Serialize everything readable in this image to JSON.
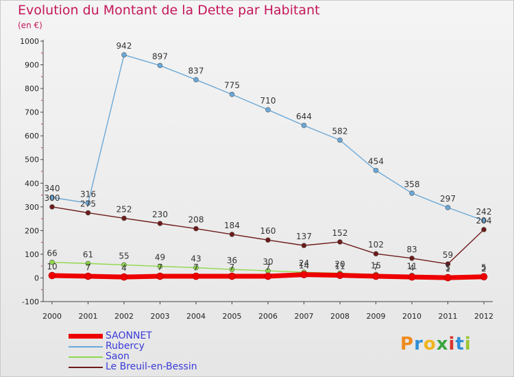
{
  "title": "Evolution du Montant de la Dette par Habitant",
  "unit_label": "(en €)",
  "logo": {
    "text": "Proxiti",
    "colors": [
      "#f08a1c",
      "#2f8fd8",
      "#f0b41c",
      "#3aa542",
      "#d8352a",
      "#2f8fd8",
      "#9ac531"
    ]
  },
  "chart_data": {
    "type": "line",
    "title": "Evolution du Montant de la Dette par Habitant",
    "ylabel": "(en €)",
    "x": [
      "2000",
      "2001",
      "2002",
      "2003",
      "2004",
      "2005",
      "2006",
      "2007",
      "2008",
      "2009",
      "2010",
      "2011",
      "2012"
    ],
    "ylim": [
      -100,
      1000
    ],
    "yticks": [
      -100,
      0,
      100,
      200,
      300,
      400,
      500,
      600,
      700,
      800,
      900,
      1000
    ],
    "grid": false,
    "legend_position": "bottom-left",
    "series": [
      {
        "name": "SAONNET",
        "color": "#ee0000",
        "values": [
          10,
          7,
          4,
          7,
          7,
          7,
          7,
          14,
          11,
          7,
          4,
          1,
          5
        ],
        "labels": [
          "10",
          "7",
          "4",
          "7",
          "7",
          "7",
          "7",
          "14",
          "11",
          "7",
          "4",
          "1",
          "5"
        ]
      },
      {
        "name": "Rubercy",
        "color": "#6aa8d8",
        "values": [
          340,
          316,
          942,
          897,
          837,
          775,
          710,
          644,
          582,
          454,
          358,
          297,
          242
        ],
        "labels": [
          "340",
          "316",
          "942",
          "897",
          "837",
          "775",
          "710",
          "644",
          "582",
          "454",
          "358",
          "297",
          "242"
        ]
      },
      {
        "name": "Saon",
        "color": "#8ed84a",
        "values": [
          66,
          61,
          55,
          49,
          43,
          36,
          30,
          24,
          20,
          15,
          11,
          5,
          2
        ],
        "labels": [
          "66",
          "61",
          "55",
          "49",
          "43",
          "36",
          "30",
          "24",
          "20",
          "15",
          "11",
          "5",
          "2"
        ]
      },
      {
        "name": "Le Breuil-en-Bessin",
        "color": "#6e1a1a",
        "values": [
          300,
          275,
          252,
          230,
          208,
          184,
          160,
          137,
          152,
          102,
          83,
          59,
          204
        ],
        "labels": [
          "300",
          "275",
          "252",
          "230",
          "208",
          "184",
          "160",
          "137",
          "152",
          "102",
          "83",
          "59",
          "204"
        ]
      }
    ]
  }
}
